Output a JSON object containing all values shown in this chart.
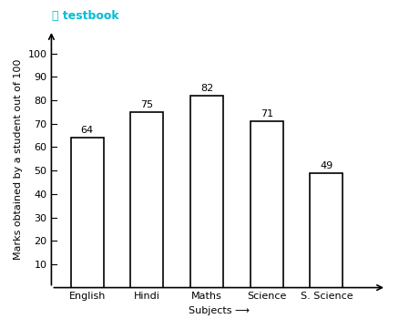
{
  "categories": [
    "English",
    "Hindi",
    "Maths",
    "Science",
    "S. Science"
  ],
  "values": [
    64,
    75,
    82,
    71,
    49
  ],
  "bar_color": "#ffffff",
  "bar_edgecolor": "#000000",
  "bar_linewidth": 1.2,
  "xlabel": "Subjects ➡",
  "ylabel": "Marks obtained by a student out of 100",
  "yticks": [
    10,
    20,
    30,
    40,
    50,
    60,
    70,
    80,
    90,
    100
  ],
  "ylim": [
    0,
    110
  ],
  "xlim": [
    -0.6,
    5.0
  ],
  "bar_width": 0.55,
  "label_fontsize": 8,
  "axis_fontsize": 8,
  "value_fontsize": 8,
  "background_color": "#ffffff",
  "logo_text": "testbook",
  "logo_color": "#00bcd4"
}
